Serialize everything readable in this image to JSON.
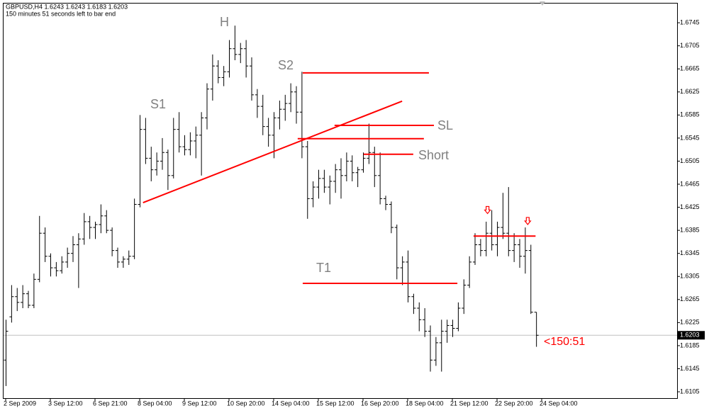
{
  "chart_data": {
    "type": "ohlc",
    "header": "GBPUSD,H4  1.6243 1.6243 1.6183 1.6203",
    "subheader": "150 minutes 51 seconds left to bar end",
    "countdown": "<150:51",
    "current_price": 1.6203,
    "color": "#000000",
    "line_color": "#ff0000",
    "grid": false,
    "xlim": [
      -0.381,
      120.25
    ],
    "ylim": [
      1.6094,
      1.67783
    ],
    "yticks": [
      1.6105,
      1.6145,
      1.6185,
      1.6225,
      1.6265,
      1.6305,
      1.6345,
      1.6385,
      1.6425,
      1.6465,
      1.6505,
      1.6545,
      1.6585,
      1.6625,
      1.6665,
      1.6705,
      1.6745
    ],
    "xticks": [
      {
        "value": 0,
        "label": "2 Sep 2009"
      },
      {
        "value": 8,
        "label": "3 Sep 12:00"
      },
      {
        "value": 16,
        "label": "6 Sep 21:00"
      },
      {
        "value": 24,
        "label": "8 Sep 04:00"
      },
      {
        "value": 32,
        "label": "9 Sep 12:00"
      },
      {
        "value": 40,
        "label": "10 Sep 20:00"
      },
      {
        "value": 48,
        "label": "14 Sep 04:00"
      },
      {
        "value": 56,
        "label": "15 Sep 12:00"
      },
      {
        "value": 64,
        "label": "16 Sep 20:00"
      },
      {
        "value": 72,
        "label": "18 Sep 04:00"
      },
      {
        "value": 80,
        "label": "21 Sep 12:00"
      },
      {
        "value": 88,
        "label": "22 Sep 20:00"
      },
      {
        "value": 96,
        "label": "24 Sep 04:00"
      }
    ],
    "ohlc": [
      [
        1.616,
        1.623,
        1.6115,
        1.621
      ],
      [
        1.6235,
        1.629,
        1.6225,
        1.627
      ],
      [
        1.627,
        1.6285,
        1.6245,
        1.626
      ],
      [
        1.626,
        1.629,
        1.625,
        1.6275
      ],
      [
        1.6275,
        1.628,
        1.625,
        1.6255
      ],
      [
        1.6255,
        1.631,
        1.625,
        1.63
      ],
      [
        1.63,
        1.641,
        1.6295,
        1.638
      ],
      [
        1.638,
        1.639,
        1.633,
        1.634
      ],
      [
        1.634,
        1.6345,
        1.6305,
        1.632
      ],
      [
        1.632,
        1.633,
        1.6305,
        1.6315
      ],
      [
        1.6315,
        1.634,
        1.631,
        1.633
      ],
      [
        1.633,
        1.6355,
        1.632,
        1.6345
      ],
      [
        1.6345,
        1.6375,
        1.633,
        1.636
      ],
      [
        1.636,
        1.638,
        1.6285,
        1.637
      ],
      [
        1.637,
        1.6415,
        1.636,
        1.64
      ],
      [
        1.64,
        1.641,
        1.637,
        1.639
      ],
      [
        1.639,
        1.64,
        1.637,
        1.6395
      ],
      [
        1.6395,
        1.643,
        1.638,
        1.641
      ],
      [
        1.641,
        1.642,
        1.638,
        1.6385
      ],
      [
        1.6385,
        1.639,
        1.634,
        1.635
      ],
      [
        1.635,
        1.6355,
        1.632,
        1.633
      ],
      [
        1.633,
        1.634,
        1.632,
        1.6335
      ],
      [
        1.6335,
        1.635,
        1.6325,
        1.634
      ],
      [
        1.634,
        1.644,
        1.6335,
        1.643
      ],
      [
        1.643,
        1.6585,
        1.6425,
        1.656
      ],
      [
        1.656,
        1.658,
        1.65,
        1.651
      ],
      [
        1.651,
        1.653,
        1.647,
        1.649
      ],
      [
        1.649,
        1.652,
        1.648,
        1.6505
      ],
      [
        1.6505,
        1.6545,
        1.649,
        1.652
      ],
      [
        1.652,
        1.6525,
        1.6455,
        1.648
      ],
      [
        1.648,
        1.658,
        1.6475,
        1.656
      ],
      [
        1.656,
        1.659,
        1.652,
        1.653
      ],
      [
        1.653,
        1.655,
        1.6515,
        1.6525
      ],
      [
        1.6525,
        1.6555,
        1.6515,
        1.654
      ],
      [
        1.654,
        1.6565,
        1.651,
        1.655
      ],
      [
        1.655,
        1.659,
        1.648,
        1.658
      ],
      [
        1.658,
        1.664,
        1.656,
        1.663
      ],
      [
        1.663,
        1.669,
        1.661,
        1.667
      ],
      [
        1.667,
        1.668,
        1.664,
        1.665
      ],
      [
        1.665,
        1.667,
        1.6635,
        1.666
      ],
      [
        1.666,
        1.6715,
        1.665,
        1.67
      ],
      [
        1.67,
        1.674,
        1.668,
        1.669
      ],
      [
        1.669,
        1.671,
        1.6675,
        1.67
      ],
      [
        1.67,
        1.6715,
        1.665,
        1.667
      ],
      [
        1.667,
        1.6685,
        1.661,
        1.662
      ],
      [
        1.662,
        1.663,
        1.658,
        1.66
      ],
      [
        1.66,
        1.662,
        1.655,
        1.6565
      ],
      [
        1.6565,
        1.658,
        1.653,
        1.655
      ],
      [
        1.655,
        1.659,
        1.651,
        1.658
      ],
      [
        1.658,
        1.661,
        1.656,
        1.6595
      ],
      [
        1.6595,
        1.662,
        1.6575,
        1.6605
      ],
      [
        1.6605,
        1.664,
        1.659,
        1.6625
      ],
      [
        1.6625,
        1.6635,
        1.657,
        1.659
      ],
      [
        1.659,
        1.666,
        1.651,
        1.653
      ],
      [
        1.653,
        1.654,
        1.6405,
        1.644
      ],
      [
        1.644,
        1.647,
        1.6425,
        1.646
      ],
      [
        1.646,
        1.649,
        1.644,
        1.6475
      ],
      [
        1.6475,
        1.649,
        1.645,
        1.646
      ],
      [
        1.646,
        1.648,
        1.643,
        1.647
      ],
      [
        1.647,
        1.65,
        1.645,
        1.649
      ],
      [
        1.649,
        1.651,
        1.644,
        1.648
      ],
      [
        1.648,
        1.652,
        1.647,
        1.6505
      ],
      [
        1.6505,
        1.6515,
        1.647,
        1.6485
      ],
      [
        1.6485,
        1.6495,
        1.646,
        1.649
      ],
      [
        1.649,
        1.652,
        1.6485,
        1.651
      ],
      [
        1.651,
        1.657,
        1.65,
        1.652
      ],
      [
        1.652,
        1.653,
        1.646,
        1.648
      ],
      [
        1.648,
        1.652,
        1.643,
        1.644
      ],
      [
        1.644,
        1.6445,
        1.642,
        1.643
      ],
      [
        1.643,
        1.6435,
        1.638,
        1.639
      ],
      [
        1.639,
        1.6395,
        1.63,
        1.632
      ],
      [
        1.632,
        1.634,
        1.629,
        1.633
      ],
      [
        1.633,
        1.635,
        1.626,
        1.627
      ],
      [
        1.627,
        1.6275,
        1.624,
        1.625
      ],
      [
        1.625,
        1.626,
        1.621,
        1.623
      ],
      [
        1.623,
        1.625,
        1.62,
        1.621
      ],
      [
        1.621,
        1.622,
        1.614,
        1.616
      ],
      [
        1.616,
        1.62,
        1.615,
        1.619
      ],
      [
        1.619,
        1.623,
        1.614,
        1.621
      ],
      [
        1.621,
        1.623,
        1.619,
        1.622
      ],
      [
        1.622,
        1.623,
        1.62,
        1.6215
      ],
      [
        1.6215,
        1.626,
        1.621,
        1.625
      ],
      [
        1.625,
        1.63,
        1.624,
        1.629
      ],
      [
        1.629,
        1.634,
        1.6285,
        1.633
      ],
      [
        1.633,
        1.638,
        1.6325,
        1.636
      ],
      [
        1.636,
        1.637,
        1.634,
        1.635
      ],
      [
        1.635,
        1.64,
        1.634,
        1.638
      ],
      [
        1.638,
        1.642,
        1.635,
        1.636
      ],
      [
        1.636,
        1.64,
        1.634,
        1.639
      ],
      [
        1.639,
        1.645,
        1.637,
        1.638
      ],
      [
        1.638,
        1.646,
        1.634,
        1.635
      ],
      [
        1.635,
        1.638,
        1.633,
        1.636
      ],
      [
        1.636,
        1.637,
        1.632,
        1.634
      ],
      [
        1.634,
        1.639,
        1.631,
        1.635
      ],
      [
        1.635,
        1.636,
        1.624,
        1.6243
      ],
      [
        1.6243,
        1.6243,
        1.6183,
        1.6203
      ]
    ],
    "lines": [
      {
        "x": [
          24.6,
          71.0
        ],
        "y": [
          1.6433,
          1.6609
        ]
      },
      {
        "x": [
          53.2,
          75.8
        ],
        "y": [
          1.6658,
          1.6658
        ]
      },
      {
        "x": [
          58.9,
          76.7
        ],
        "y": [
          1.6567,
          1.6567
        ]
      },
      {
        "x": [
          52.3,
          74.9
        ],
        "y": [
          1.6544,
          1.6544
        ]
      },
      {
        "x": [
          64.1,
          73.0
        ],
        "y": [
          1.6517,
          1.6517
        ]
      },
      {
        "x": [
          53.2,
          80.9
        ],
        "y": [
          1.6293,
          1.6293
        ]
      },
      {
        "x": [
          83.8,
          94.9
        ],
        "y": [
          1.6375,
          1.6375
        ]
      }
    ],
    "arrows": [
      {
        "x": 86.3,
        "y": 1.6419
      },
      {
        "x": 93.5,
        "y": 1.64
      }
    ],
    "annotations": [
      "H",
      "S1",
      "S2",
      "SL",
      "Short",
      "T1"
    ]
  }
}
